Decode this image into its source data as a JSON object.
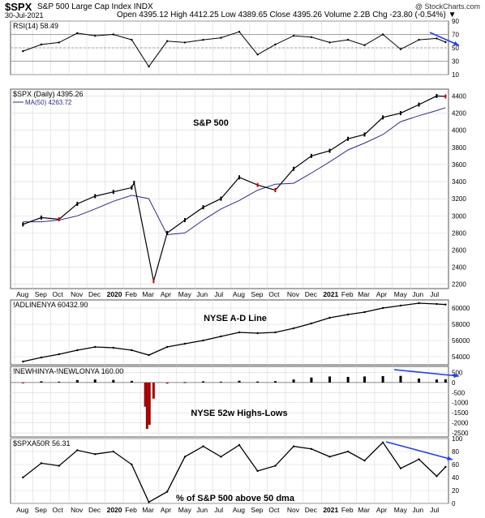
{
  "header": {
    "symbol": "$SPX",
    "description": "S&P 500 Large Cap Index  INDX",
    "date": "30-Jul-2021",
    "ohlc": "Open 4395.12  High 4412.25  Low 4389.65  Close 4395.26  Volume 2.2B  Chg -23.80 (-0.54%) ▼",
    "brand": "@ StockCharts.com"
  },
  "colors": {
    "price_up": "#000000",
    "price_down": "#cc0000",
    "ma": "#2b2b8f",
    "arrow": "#1f3ff0",
    "rsi_fill": "#2e7d32",
    "hilo_neg": "#a00000",
    "grid": "#d8d8d8"
  },
  "x_axis": {
    "labels_row1": [
      "Aug",
      "Sep",
      "Oct",
      "Nov",
      "Dec",
      "2020",
      "Feb",
      "Mar",
      "Apr",
      "May",
      "Jun",
      "Jul",
      "Aug",
      "Sep",
      "Oct",
      "Nov",
      "Dec",
      "2021",
      "Feb",
      "Mar",
      "Apr",
      "May",
      "Jun",
      "Jul"
    ],
    "labels_row2": [
      "Aug",
      "Sep",
      "Oct",
      "Nov",
      "Dec",
      "2020",
      "Feb",
      "Mar",
      "Apr",
      "May",
      "Jun",
      "Jul",
      "Aug",
      "Sep",
      "Oct",
      "Nov",
      "Dec",
      "2021",
      "Feb",
      "Mar",
      "Apr",
      "May",
      "Jun",
      "Jul"
    ],
    "bold_labels": [
      "2020",
      "2021"
    ]
  },
  "chart_data": [
    {
      "type": "line",
      "panel": "rsi",
      "legend": "RSI(14) 58.49",
      "ylim": [
        10,
        90
      ],
      "yticks": [
        10,
        30,
        50,
        70,
        90
      ],
      "ytick_labels": [
        "10",
        "30",
        "50",
        "70",
        "90"
      ],
      "reference_lines": [
        30,
        50,
        70
      ],
      "x": [
        "2019-08",
        "2019-09",
        "2019-10",
        "2019-11",
        "2019-12",
        "2020-01",
        "2020-02",
        "2020-03",
        "2020-04",
        "2020-05",
        "2020-06",
        "2020-07",
        "2020-08",
        "2020-09",
        "2020-10",
        "2020-11",
        "2020-12",
        "2021-01",
        "2021-02",
        "2021-03",
        "2021-04",
        "2021-05",
        "2021-06",
        "2021-07",
        "2021-07-30"
      ],
      "values": [
        45,
        55,
        58,
        72,
        68,
        70,
        62,
        22,
        60,
        58,
        62,
        65,
        74,
        40,
        55,
        68,
        66,
        58,
        62,
        54,
        70,
        48,
        62,
        64,
        58.49
      ]
    },
    {
      "type": "line",
      "panel": "price",
      "series": [
        {
          "name": "$SPX (Daily) 4395.26",
          "x": [
            "2019-08",
            "2019-09",
            "2019-10",
            "2019-11",
            "2019-12",
            "2020-01",
            "2020-02",
            "2020-02-19",
            "2020-03-23",
            "2020-04",
            "2020-05",
            "2020-06",
            "2020-07",
            "2020-08",
            "2020-09",
            "2020-10",
            "2020-11",
            "2020-12",
            "2021-01",
            "2021-02",
            "2021-03",
            "2021-04",
            "2021-05",
            "2021-06",
            "2021-07",
            "2021-07-30"
          ],
          "values": [
            2900,
            2980,
            2960,
            3140,
            3230,
            3280,
            3330,
            3386,
            2237,
            2800,
            2950,
            3100,
            3200,
            3450,
            3360,
            3300,
            3550,
            3700,
            3760,
            3900,
            3950,
            4150,
            4200,
            4300,
            4400,
            4395.26
          ]
        },
        {
          "name": "MA(50) 4263.72",
          "x": [
            "2019-08",
            "2019-09",
            "2019-10",
            "2019-11",
            "2019-12",
            "2020-01",
            "2020-02",
            "2020-03",
            "2020-04",
            "2020-05",
            "2020-06",
            "2020-07",
            "2020-08",
            "2020-09",
            "2020-10",
            "2020-11",
            "2020-12",
            "2021-01",
            "2021-02",
            "2021-03",
            "2021-04",
            "2021-05",
            "2021-06",
            "2021-07",
            "2021-07-30"
          ],
          "values": [
            2930,
            2930,
            2950,
            3000,
            3080,
            3170,
            3240,
            3200,
            2780,
            2800,
            2950,
            3080,
            3180,
            3300,
            3370,
            3380,
            3500,
            3630,
            3770,
            3850,
            3950,
            4100,
            4170,
            4230,
            4263.72
          ]
        }
      ],
      "annotation": "S&P 500",
      "ylim": [
        2150,
        4480
      ],
      "yticks": [
        2200,
        2400,
        2600,
        2800,
        3000,
        3200,
        3400,
        3600,
        3800,
        4000,
        4200,
        4400
      ],
      "ytick_labels": [
        "2200",
        "2400",
        "2600",
        "2800",
        "3000",
        "3200",
        "3400",
        "3600",
        "3800",
        "4000",
        "4200",
        "4400"
      ]
    },
    {
      "type": "line",
      "panel": "ad_line",
      "legend": "!ADLINENYA 60432.90",
      "annotation": "NYSE A-D Line",
      "ylim": [
        53000,
        61000
      ],
      "yticks": [
        54000,
        56000,
        58000,
        60000
      ],
      "ytick_labels": [
        "54000",
        "56000",
        "58000",
        "60000"
      ],
      "x": [
        "2019-08",
        "2019-09",
        "2019-10",
        "2019-11",
        "2019-12",
        "2020-01",
        "2020-02",
        "2020-03",
        "2020-04",
        "2020-05",
        "2020-06",
        "2020-07",
        "2020-08",
        "2020-09",
        "2020-10",
        "2020-11",
        "2020-12",
        "2021-01",
        "2021-02",
        "2021-03",
        "2021-04",
        "2021-05",
        "2021-06",
        "2021-07",
        "2021-07-30"
      ],
      "values": [
        53400,
        53900,
        54300,
        54800,
        55200,
        55100,
        54800,
        54200,
        55200,
        55600,
        56000,
        56500,
        57000,
        56900,
        57000,
        57500,
        58100,
        58800,
        59200,
        59500,
        60000,
        60300,
        60600,
        60500,
        60432.9
      ]
    },
    {
      "type": "bar",
      "panel": "highs_lows",
      "legend": "!NEWHINYA-!NEWLONYA 160.00",
      "annotation": "NYSE 52w Highs-Lows",
      "ylim": [
        -2700,
        800
      ],
      "yticks": [
        -2500,
        -2000,
        -1500,
        -1000,
        -500,
        0,
        500
      ],
      "ytick_labels": [
        "-2500",
        "-2000",
        "-1500",
        "-1000",
        "-500",
        "0",
        "500"
      ],
      "x": [
        "2019-08",
        "2019-09",
        "2019-10",
        "2019-11",
        "2019-12",
        "2020-01",
        "2020-02",
        "2020-03-09",
        "2020-03-12",
        "2020-03-16",
        "2020-03-23",
        "2020-04",
        "2020-05",
        "2020-06",
        "2020-07",
        "2020-08",
        "2020-09",
        "2020-10",
        "2020-11",
        "2020-12",
        "2021-01",
        "2021-02",
        "2021-03",
        "2021-04",
        "2021-05",
        "2021-06",
        "2021-07",
        "2021-07-30"
      ],
      "values": [
        -40,
        60,
        40,
        120,
        150,
        130,
        80,
        -1200,
        -2300,
        -2100,
        -800,
        -50,
        20,
        60,
        40,
        90,
        50,
        70,
        150,
        250,
        300,
        280,
        300,
        320,
        330,
        200,
        150,
        160.0
      ]
    },
    {
      "type": "line",
      "panel": "pct_above_50dma",
      "legend": "$SPXA50R 56.31",
      "annotation": "% of S&P 500 above 50 dma",
      "ylim": [
        0,
        100
      ],
      "yticks": [
        0,
        20,
        40,
        60,
        80,
        100
      ],
      "ytick_labels": [
        "0",
        "20",
        "40",
        "60",
        "80",
        "100"
      ],
      "x": [
        "2019-08",
        "2019-09",
        "2019-10",
        "2019-11",
        "2019-12",
        "2020-01",
        "2020-02",
        "2020-03",
        "2020-04",
        "2020-05",
        "2020-06",
        "2020-07",
        "2020-08",
        "2020-09",
        "2020-10",
        "2020-11",
        "2020-12",
        "2021-01",
        "2021-02",
        "2021-03",
        "2021-04",
        "2021-05",
        "2021-06",
        "2021-07",
        "2021-07-30"
      ],
      "values": [
        40,
        62,
        58,
        82,
        76,
        80,
        60,
        2,
        18,
        72,
        88,
        72,
        90,
        50,
        58,
        88,
        84,
        72,
        80,
        66,
        94,
        54,
        68,
        42,
        56.31
      ]
    }
  ]
}
